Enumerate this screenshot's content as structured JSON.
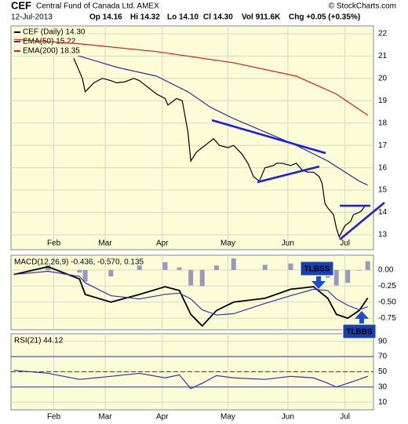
{
  "header": {
    "symbol": "CEF",
    "name": "Central Fund of Canada Ltd. AMEX",
    "source": "© StockCharts.com",
    "date": "12-Jul-2013",
    "open": "Op 14.16",
    "high": "Hi 14.32",
    "low": "Lo 14.10",
    "close": "Cl 14.30",
    "volume": "Vol 911.6K",
    "change": "Chg +0.05 (+0.35%)"
  },
  "annotations": [
    "TLBSS",
    "TLBBS"
  ],
  "chart_data": [
    {
      "type": "line",
      "xlim": [
        0,
        127
      ],
      "xticks": [
        {
          "value": 15,
          "label": "Feb"
        },
        {
          "value": 33,
          "label": "Mar"
        },
        {
          "value": 53,
          "label": "Apr"
        },
        {
          "value": 76,
          "label": "May"
        },
        {
          "value": 97,
          "label": "Jun"
        },
        {
          "value": 117,
          "label": "Jul"
        }
      ],
      "ylim": [
        12.33,
        22.35
      ],
      "yticks": [
        13,
        14,
        15,
        16,
        17,
        18,
        19,
        20,
        21,
        22
      ],
      "grid": true,
      "series": [
        {
          "name": "CEF (Daily) 14.30",
          "color": "#000000",
          "x": [
            22,
            24,
            25,
            26,
            29,
            32,
            35,
            37,
            40,
            43,
            45,
            48,
            51,
            54,
            55,
            58,
            60,
            62,
            63,
            65,
            67,
            69,
            71,
            73,
            76,
            78,
            81,
            83,
            85,
            87,
            89,
            92,
            93,
            95,
            98,
            100,
            102,
            104,
            106,
            108,
            109,
            110,
            111,
            113,
            114,
            115,
            117,
            119,
            120,
            122,
            123,
            124
          ],
          "values": [
            20.9,
            20.3,
            20.0,
            19.4,
            19.8,
            20.0,
            19.9,
            19.8,
            19.85,
            20.0,
            19.9,
            19.6,
            19.3,
            19.1,
            18.8,
            19.1,
            19.0,
            17.6,
            16.3,
            16.7,
            16.9,
            17.1,
            17.3,
            17.0,
            16.9,
            17.0,
            16.6,
            16.2,
            15.6,
            15.4,
            16.0,
            16.1,
            16.2,
            16.2,
            16.1,
            16.2,
            15.9,
            15.8,
            15.8,
            15.6,
            15.3,
            14.4,
            14.2,
            13.9,
            13.3,
            12.9,
            13.4,
            13.6,
            13.9,
            14.0,
            14.1,
            14.3
          ]
        },
        {
          "name": "EMA(50) 15.22",
          "color": "#333399",
          "x": [
            1,
            13,
            24,
            37,
            51,
            62,
            70,
            78,
            89,
            100,
            111,
            122,
            125
          ],
          "values": [
            21.8,
            21.4,
            21.0,
            20.5,
            20.1,
            19.4,
            18.7,
            18.2,
            17.6,
            17.0,
            16.3,
            15.4,
            15.22
          ]
        },
        {
          "name": "EMA(200) 18.35",
          "color": "#cc2222",
          "x": [
            1,
            24,
            51,
            78,
            100,
            114,
            125
          ],
          "values": [
            21.75,
            21.55,
            21.2,
            20.7,
            20.1,
            19.3,
            18.35
          ]
        }
      ]
    },
    {
      "type": "line",
      "title": "MACD(12,26,9) -0.436, -0.570, 0.135",
      "ylim": [
        -0.93,
        0.23
      ],
      "yticks": [
        {
          "value": 0,
          "label": "0.00"
        },
        {
          "value": -0.25,
          "label": "-0.25"
        },
        {
          "value": -0.5,
          "label": "-0.50"
        },
        {
          "value": -0.75,
          "label": "-0.75"
        }
      ],
      "x": [
        1,
        13,
        24,
        26,
        35,
        45,
        54,
        59,
        63,
        67,
        72,
        78,
        89,
        98,
        106,
        111,
        114,
        118,
        122,
        125
      ],
      "histogram": {
        "color": "#9999bb",
        "values": [
          0.0,
          0.07,
          -0.04,
          -0.18,
          -0.1,
          0.07,
          0.12,
          0.04,
          -0.24,
          -0.25,
          0.07,
          0.18,
          0.08,
          0.1,
          0.04,
          -0.12,
          -0.24,
          -0.2,
          -0.01,
          0.135
        ]
      },
      "series": [
        {
          "color": "#000000",
          "values": [
            -0.07,
            0.05,
            -0.14,
            -0.38,
            -0.5,
            -0.38,
            -0.26,
            -0.32,
            -0.69,
            -0.87,
            -0.63,
            -0.5,
            -0.44,
            -0.3,
            -0.26,
            -0.44,
            -0.69,
            -0.75,
            -0.63,
            -0.436
          ]
        },
        {
          "color": "#3333aa",
          "values": [
            -0.07,
            -0.02,
            -0.1,
            -0.2,
            -0.4,
            -0.45,
            -0.38,
            -0.36,
            -0.45,
            -0.62,
            -0.7,
            -0.68,
            -0.52,
            -0.4,
            -0.3,
            -0.32,
            -0.45,
            -0.55,
            -0.62,
            -0.57
          ]
        }
      ]
    },
    {
      "type": "line",
      "title": "RSI(21) 44.12",
      "ylim": [
        0,
        100
      ],
      "yticks": [
        90,
        70,
        50,
        30,
        10
      ],
      "levels": [
        70,
        50,
        30
      ],
      "xticks": [
        {
          "value": 15,
          "label": "Feb"
        },
        {
          "value": 33,
          "label": "Mar"
        },
        {
          "value": 53,
          "label": "Apr"
        },
        {
          "value": 76,
          "label": "May"
        },
        {
          "value": 97,
          "label": "Jun"
        },
        {
          "value": 117,
          "label": "Jul"
        }
      ],
      "x": [
        1,
        13,
        24,
        35,
        45,
        54,
        59,
        63,
        67,
        72,
        78,
        89,
        98,
        106,
        111,
        114,
        118,
        122,
        125
      ],
      "series": [
        {
          "color": "#3333aa",
          "values": [
            52,
            48,
            40,
            44,
            48,
            42,
            46,
            28,
            35,
            45,
            42,
            40,
            44,
            42,
            35,
            30,
            35,
            40,
            44.12
          ]
        }
      ]
    }
  ]
}
